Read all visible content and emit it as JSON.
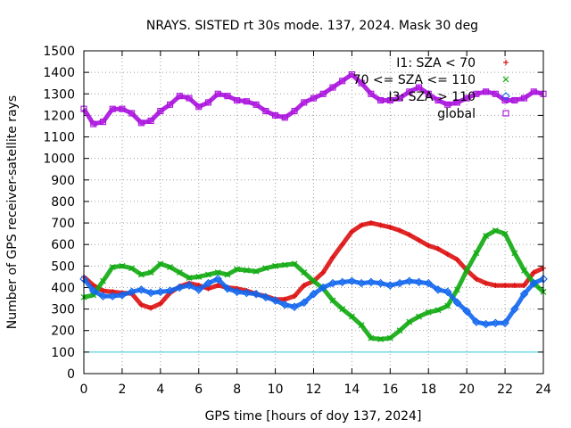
{
  "chart_data": {
    "type": "scatter",
    "title": "NRAYS. SISTED rt 30s mode. 137, 2024. Mask 30 deg",
    "xlabel": "GPS time [hours of doy 137, 2024]",
    "ylabel": "Number of GPS receiver-satellite rays",
    "xlim": [
      0,
      24
    ],
    "ylim": [
      0,
      1500
    ],
    "xticks": [
      "0",
      "2",
      "4",
      "6",
      "8",
      "10",
      "12",
      "14",
      "16",
      "18",
      "20",
      "22",
      "24"
    ],
    "yticks": [
      "0",
      "100",
      "200",
      "300",
      "400",
      "500",
      "600",
      "700",
      "800",
      "900",
      "1000",
      "1100",
      "1200",
      "1300",
      "1400",
      "1500"
    ],
    "grid": true,
    "legend_position": "top-right",
    "threshold_line": {
      "y": 100,
      "color": "#33ccdd"
    },
    "series": [
      {
        "name": "I1: SZA < 70",
        "marker": "+",
        "color": "#dd1111",
        "x": [
          0,
          0.5,
          1,
          1.5,
          2,
          2.5,
          3,
          3.5,
          4,
          4.5,
          5,
          5.5,
          6,
          6.5,
          7,
          7.5,
          8,
          8.5,
          9,
          9.5,
          10,
          10.5,
          11,
          11.5,
          12,
          12.5,
          13,
          13.5,
          14,
          14.5,
          15,
          15.5,
          16,
          16.5,
          17,
          17.5,
          18,
          18.5,
          19,
          19.5,
          20,
          20.5,
          21,
          21.5,
          22,
          22.5,
          23,
          23.5,
          24
        ],
        "y": [
          450,
          410,
          385,
          380,
          375,
          372,
          320,
          305,
          325,
          375,
          405,
          420,
          410,
          395,
          410,
          400,
          395,
          385,
          370,
          360,
          345,
          345,
          360,
          410,
          430,
          470,
          540,
          600,
          660,
          690,
          700,
          690,
          680,
          665,
          645,
          620,
          595,
          580,
          555,
          530,
          480,
          440,
          420,
          410,
          410,
          410,
          410,
          470,
          490
        ]
      },
      {
        "name": "70 <= SZA <= 110",
        "marker": "x",
        "color": "#11aa11",
        "x": [
          0,
          0.5,
          1,
          1.5,
          2,
          2.5,
          3,
          3.5,
          4,
          4.5,
          5,
          5.5,
          6,
          6.5,
          7,
          7.5,
          8,
          8.5,
          9,
          9.5,
          10,
          10.5,
          11,
          11.5,
          12,
          12.5,
          13,
          13.5,
          14,
          14.5,
          15,
          15.5,
          16,
          16.5,
          17,
          17.5,
          18,
          18.5,
          19,
          19.5,
          20,
          20.5,
          21,
          21.5,
          22,
          22.5,
          23,
          23.5,
          24
        ],
        "y": [
          355,
          365,
          430,
          495,
          500,
          490,
          460,
          470,
          510,
          495,
          470,
          445,
          450,
          460,
          470,
          460,
          485,
          480,
          475,
          490,
          500,
          505,
          510,
          470,
          430,
          395,
          340,
          300,
          265,
          225,
          165,
          160,
          165,
          200,
          240,
          265,
          285,
          295,
          315,
          390,
          480,
          560,
          640,
          665,
          650,
          560,
          480,
          420,
          380
        ]
      },
      {
        "name": "I3: SZA > 110",
        "marker": "diamond",
        "color": "#1166ee",
        "x": [
          0,
          0.5,
          1,
          1.5,
          2,
          2.5,
          3,
          3.5,
          4,
          4.5,
          5,
          5.5,
          6,
          6.5,
          7,
          7.5,
          8,
          8.5,
          9,
          9.5,
          10,
          10.5,
          11,
          11.5,
          12,
          12.5,
          13,
          13.5,
          14,
          14.5,
          15,
          15.5,
          16,
          16.5,
          17,
          17.5,
          18,
          18.5,
          19,
          19.5,
          20,
          20.5,
          21,
          21.5,
          22,
          22.5,
          23,
          23.5,
          24
        ],
        "y": [
          440,
          385,
          360,
          360,
          365,
          380,
          390,
          375,
          380,
          385,
          400,
          410,
          390,
          420,
          440,
          395,
          380,
          375,
          370,
          355,
          340,
          320,
          310,
          330,
          370,
          400,
          420,
          425,
          430,
          420,
          425,
          420,
          410,
          420,
          430,
          425,
          420,
          390,
          380,
          330,
          290,
          240,
          230,
          235,
          235,
          300,
          370,
          420,
          440
        ]
      },
      {
        "name": "global",
        "marker": "square",
        "color": "#aa11dd",
        "x": [
          0,
          0.5,
          1,
          1.5,
          2,
          2.5,
          3,
          3.5,
          4,
          4.5,
          5,
          5.5,
          6,
          6.5,
          7,
          7.5,
          8,
          8.5,
          9,
          9.5,
          10,
          10.5,
          11,
          11.5,
          12,
          12.5,
          13,
          13.5,
          14,
          14.5,
          15,
          15.5,
          16,
          16.5,
          17,
          17.5,
          18,
          18.5,
          19,
          19.5,
          20,
          20.5,
          21,
          21.5,
          22,
          22.5,
          23,
          23.5,
          24
        ],
        "y": [
          1230,
          1160,
          1170,
          1230,
          1230,
          1210,
          1165,
          1175,
          1220,
          1250,
          1290,
          1280,
          1240,
          1260,
          1300,
          1290,
          1270,
          1265,
          1250,
          1220,
          1200,
          1190,
          1220,
          1260,
          1280,
          1300,
          1330,
          1360,
          1390,
          1350,
          1300,
          1270,
          1270,
          1280,
          1310,
          1330,
          1300,
          1270,
          1250,
          1260,
          1280,
          1300,
          1310,
          1300,
          1270,
          1270,
          1280,
          1310,
          1300
        ]
      }
    ]
  }
}
